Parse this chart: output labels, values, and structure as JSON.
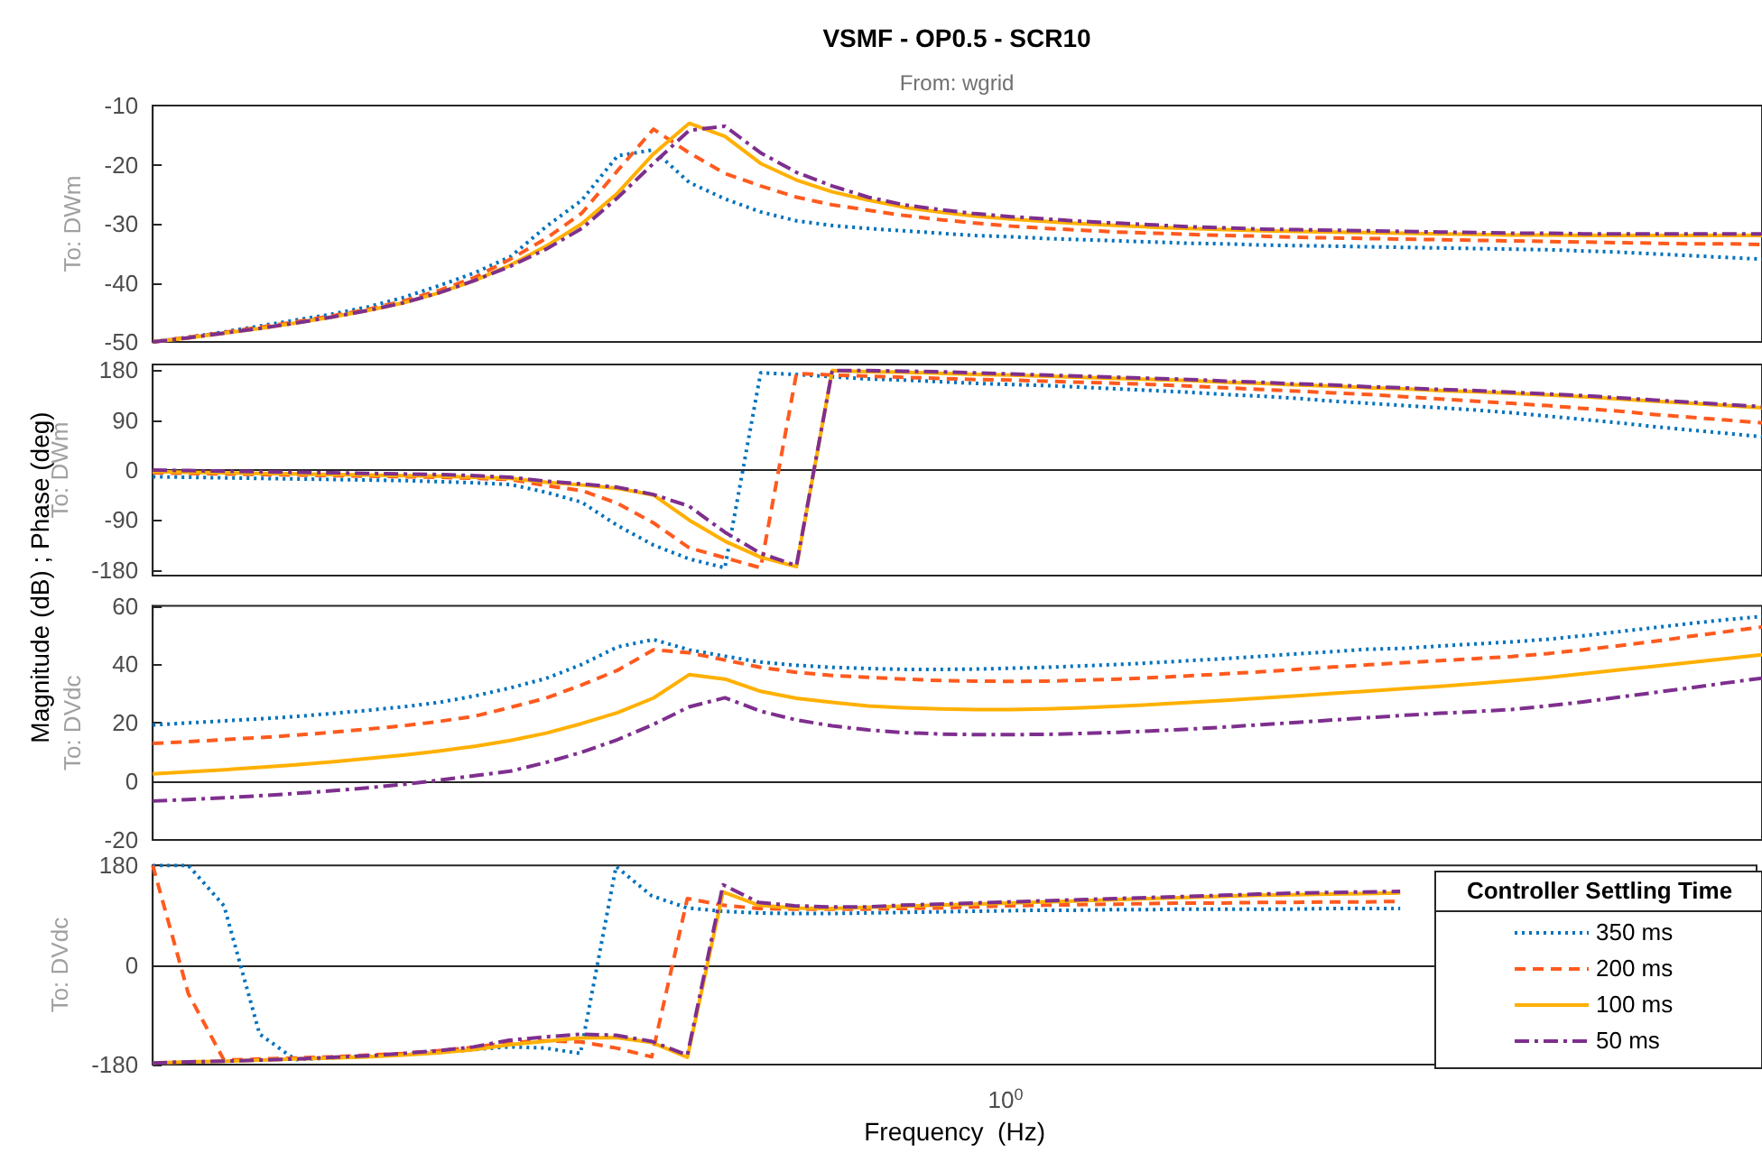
{
  "chart_data": [
    {
      "type": "line",
      "title": "VSMF - OP0.5 - SCR10",
      "subtitle": "From: wgrid",
      "ylabel": "To: DWm",
      "annotations": [
        "Magnitude (dB) ; Phase (deg)"
      ],
      "categories": [
        null,
        null,
        null,
        null,
        null,
        null,
        null,
        null,
        null,
        null,
        null,
        null,
        null,
        null,
        null,
        null,
        null,
        null,
        null,
        null,
        null,
        null,
        null,
        null,
        null,
        null,
        null,
        null,
        null,
        null,
        null,
        null,
        null,
        null,
        null,
        null,
        null,
        null,
        null,
        null,
        null,
        null,
        null,
        null,
        null,
        null
      ],
      "ylim": [
        -50,
        -10
      ],
      "yticks": [
        -50,
        -40,
        -30,
        -20,
        -10
      ],
      "tick_labels": "y",
      "series": [
        {
          "color": "#0072bd",
          "line_style": "dotted",
          "values": [
            -50,
            -49.2,
            -48.3,
            -47.3,
            -46.3,
            -45.3,
            -44.1,
            -42.5,
            -40.5,
            -38.3,
            -35.6,
            -30.5,
            -26,
            -18.5,
            -17.5,
            -23,
            -25.8,
            -28,
            -29.5,
            -30.3,
            -30.8,
            -31.2,
            -31.6,
            -32,
            -32.2,
            -32.5,
            -32.7,
            -32.9,
            -33.1,
            -33.3,
            -33.4,
            -33.6,
            -33.7,
            -33.8,
            -33.9,
            -34,
            -34.1,
            -34.2,
            -34.3,
            -34.4,
            -34.6,
            -34.8,
            -35.1,
            -35.4,
            -35.7,
            -36
          ]
        },
        {
          "color": "#ff5a1e",
          "line_style": "dashed",
          "values": [
            -50,
            -49.2,
            -48.4,
            -47.5,
            -46.6,
            -45.6,
            -44.5,
            -43.1,
            -41.3,
            -39.1,
            -36,
            -32.5,
            -28.2,
            -21,
            -14,
            -18,
            -21.5,
            -23.6,
            -25.5,
            -26.8,
            -27.7,
            -28.6,
            -29.3,
            -29.9,
            -30.4,
            -30.8,
            -31.1,
            -31.4,
            -31.6,
            -31.8,
            -32,
            -32.1,
            -32.3,
            -32.4,
            -32.5,
            -32.6,
            -32.7,
            -32.8,
            -32.9,
            -33,
            -33.1,
            -33.2,
            -33.3,
            -33.4,
            -33.4,
            -33.5
          ]
        },
        {
          "color": "#ffb000",
          "line_style": "solid",
          "values": [
            -50,
            -49.3,
            -48.5,
            -47.7,
            -46.8,
            -45.8,
            -44.7,
            -43.4,
            -41.7,
            -39.6,
            -37,
            -33.8,
            -30,
            -24.8,
            -18.2,
            -13,
            -15.2,
            -19.8,
            -22.6,
            -24.6,
            -26,
            -27.2,
            -28,
            -28.7,
            -29.2,
            -29.6,
            -30,
            -30.3,
            -30.6,
            -30.8,
            -31,
            -31.2,
            -31.3,
            -31.4,
            -31.5,
            -31.6,
            -31.7,
            -31.8,
            -31.9,
            -31.9,
            -32,
            -32,
            -32,
            -32,
            -32,
            -32
          ]
        },
        {
          "color": "#7e2f8e",
          "line_style": "dashdot",
          "values": [
            -50,
            -49.3,
            -48.5,
            -47.7,
            -46.8,
            -45.8,
            -44.7,
            -43.4,
            -41.7,
            -39.6,
            -37.2,
            -34.3,
            -30.8,
            -25.6,
            -19.8,
            -14.2,
            -13.5,
            -18,
            -21.3,
            -23.6,
            -25.5,
            -26.8,
            -27.6,
            -28.3,
            -28.8,
            -29.2,
            -29.6,
            -29.9,
            -30.2,
            -30.5,
            -30.7,
            -30.9,
            -31,
            -31.1,
            -31.2,
            -31.3,
            -31.4,
            -31.5,
            -31.6,
            -31.6,
            -31.7,
            -31.7,
            -31.7,
            -31.7,
            -31.7,
            -31.7
          ]
        }
      ]
    },
    {
      "type": "line",
      "ylabel": "To: DWm",
      "categories": [
        null,
        null,
        null,
        null,
        null,
        null,
        null,
        null,
        null,
        null,
        null,
        null,
        null,
        null,
        null,
        null,
        null,
        null,
        null,
        null,
        null,
        null,
        null,
        null,
        null,
        null,
        null,
        null,
        null,
        null,
        null,
        null,
        null,
        null,
        null,
        null,
        null,
        null,
        null,
        null,
        null,
        null,
        null,
        null,
        null,
        null
      ],
      "ylim": [
        -190,
        190
      ],
      "yticks": [
        -180,
        -90,
        0,
        90,
        180
      ],
      "tick_labels": "y",
      "series": [
        {
          "color": "#0072bd",
          "line_style": "dotted",
          "values": [
            -12,
            -13,
            -14,
            -15,
            -16,
            -17,
            -18,
            -19,
            -21,
            -23,
            -26,
            -40,
            -58,
            -100,
            -135,
            -160,
            -176,
            175,
            172,
            168,
            164,
            162,
            159,
            156,
            154,
            152,
            149,
            146,
            143,
            140,
            136,
            133,
            129,
            124,
            120,
            116,
            112,
            108,
            103,
            97,
            91,
            85,
            78,
            72,
            66,
            60
          ]
        },
        {
          "color": "#ff5a1e",
          "line_style": "dashed",
          "values": [
            -5,
            -6,
            -7,
            -8,
            -9,
            -10,
            -11,
            -12,
            -13,
            -15,
            -17,
            -28,
            -37,
            -60,
            -95,
            -140,
            -158,
            -176,
            174,
            171,
            169,
            167,
            165,
            163,
            162,
            160,
            158,
            156,
            154,
            151,
            148,
            145,
            142,
            139,
            136,
            132,
            128,
            124,
            120,
            116,
            111,
            106,
            100,
            95,
            90,
            85
          ]
        },
        {
          "color": "#ffb000",
          "line_style": "solid",
          "values": [
            -3,
            -4,
            -5,
            -6,
            -7,
            -8,
            -9,
            -10,
            -11,
            -13,
            -15,
            -22,
            -27,
            -33,
            -45,
            -90,
            -128,
            -157,
            -174,
            179,
            177,
            176,
            174,
            172,
            171,
            169,
            167,
            165,
            163,
            161,
            158,
            156,
            153,
            151,
            148,
            146,
            143,
            141,
            138,
            135,
            132,
            128,
            124,
            120,
            116,
            112
          ]
        },
        {
          "color": "#7e2f8e",
          "line_style": "dashdot",
          "values": [
            0,
            -1,
            -2,
            -3,
            -4,
            -5,
            -6,
            -7,
            -8,
            -10,
            -13,
            -20,
            -25,
            -31,
            -44,
            -65,
            -112,
            -150,
            -172,
            179,
            179,
            178,
            177,
            175,
            173,
            171,
            169,
            167,
            165,
            163,
            160,
            158,
            155,
            153,
            150,
            148,
            145,
            143,
            140,
            137,
            134,
            130,
            126,
            122,
            118,
            114
          ]
        }
      ]
    },
    {
      "type": "line",
      "ylabel": "To: DVdc",
      "categories": [
        null,
        null,
        null,
        null,
        null,
        null,
        null,
        null,
        null,
        null,
        null,
        null,
        null,
        null,
        null,
        null,
        null,
        null,
        null,
        null,
        null,
        null,
        null,
        null,
        null,
        null,
        null,
        null,
        null,
        null,
        null,
        null,
        null,
        null,
        null,
        null,
        null,
        null,
        null,
        null,
        null,
        null,
        null,
        null,
        null,
        null
      ],
      "ylim": [
        -20,
        60
      ],
      "yticks": [
        -20,
        0,
        20,
        40,
        60
      ],
      "tick_labels": "y",
      "series": [
        {
          "color": "#0072bd",
          "line_style": "dotted",
          "values": [
            19.3,
            20,
            20.7,
            21.4,
            22.2,
            23.2,
            24.3,
            25.5,
            27,
            29.2,
            32,
            35.2,
            40,
            46,
            48.5,
            45,
            42.8,
            40.8,
            39.7,
            39,
            38.6,
            38.3,
            38.3,
            38.4,
            38.7,
            39,
            39.5,
            40,
            40.6,
            41.3,
            42,
            42.8,
            43.6,
            44.4,
            45.2,
            45.5,
            46.3,
            47,
            47.7,
            48.6,
            49.8,
            51.2,
            52.6,
            54,
            55.3,
            56.4
          ]
        },
        {
          "color": "#ff5a1e",
          "line_style": "dashed",
          "values": [
            13,
            13.6,
            14.3,
            15,
            15.8,
            16.8,
            17.9,
            19,
            20.5,
            22.3,
            25.3,
            28.5,
            33,
            38,
            45,
            44,
            41.5,
            39,
            37.3,
            36.2,
            35.6,
            35,
            34.5,
            34.3,
            34.2,
            34.3,
            34.6,
            35,
            35.5,
            36.1,
            36.8,
            37.5,
            38.3,
            39.1,
            39.9,
            40.6,
            41.3,
            42,
            42.7,
            43.7,
            45,
            46.4,
            47.9,
            49.6,
            51.2,
            52.8
          ]
        },
        {
          "color": "#ffb000",
          "line_style": "solid",
          "values": [
            2.6,
            3.3,
            4,
            4.8,
            5.7,
            6.7,
            7.8,
            9,
            10.4,
            12,
            14,
            16.5,
            19.8,
            23.5,
            28.5,
            36.5,
            35,
            30.8,
            28.4,
            27,
            25.8,
            25.2,
            24.8,
            24.6,
            24.6,
            24.8,
            25.2,
            25.7,
            26.3,
            27,
            27.7,
            28.5,
            29.3,
            30.1,
            30.9,
            31.7,
            32.5,
            33.4,
            34.4,
            35.5,
            36.8,
            38.1,
            39.4,
            40.7,
            42,
            43.3
          ]
        },
        {
          "color": "#7e2f8e",
          "line_style": "dashdot",
          "values": [
            -6.7,
            -6.2,
            -5.6,
            -4.9,
            -4.1,
            -3.2,
            -2.2,
            -1,
            0.4,
            2,
            3.5,
            6.5,
            10,
            14.3,
            19.5,
            25.5,
            28.6,
            24,
            21,
            19,
            17.6,
            16.7,
            16.2,
            16,
            16,
            16.1,
            16.4,
            16.8,
            17.3,
            17.9,
            18.6,
            19.4,
            20.2,
            21,
            21.8,
            22.6,
            23.3,
            23.9,
            24.6,
            25.8,
            27.2,
            28.8,
            30.4,
            32,
            33.7,
            35.3
          ]
        }
      ]
    },
    {
      "type": "line",
      "ylabel": "To: DVdc",
      "xlabel": "Frequency  (Hz)",
      "annotations": [
        "10$^{0}$"
      ],
      "legend_title": "Controller Settling Time",
      "legend": "bottom right",
      "categories": [
        null,
        null,
        null,
        null,
        null,
        null,
        null,
        null,
        null,
        null,
        null,
        null,
        null,
        null,
        null,
        null,
        null,
        null,
        null,
        null,
        null,
        null,
        null,
        null,
        null,
        null,
        null,
        null,
        null,
        null,
        null,
        null,
        null,
        null,
        null,
        null,
        null,
        null,
        null,
        null,
        null,
        null,
        null,
        null,
        null,
        null
      ],
      "ylim": [
        -180,
        180
      ],
      "yticks": [
        -180,
        0,
        180
      ],
      "series": [
        {
          "name": "350 ms",
          "color": "#0072bd",
          "line_style": "dotted",
          "values": [
            180,
            180,
            107,
            -125,
            -171,
            -168,
            -165,
            -162,
            -158,
            -153,
            -148,
            -150,
            -160,
            178,
            125,
            103,
            97,
            94,
            93,
            93,
            94,
            95,
            96,
            97,
            98,
            99,
            99,
            100,
            100,
            101,
            101,
            101,
            101,
            102,
            102,
            102,
            null,
            null,
            null,
            null,
            null,
            null,
            null,
            null,
            null,
            null
          ]
        },
        {
          "name": "200 ms",
          "color": "#ff5a1e",
          "line_style": "dashed",
          "values": [
            180,
            -52,
            -172,
            -170,
            -168,
            -166,
            -163,
            -160,
            -155,
            -149,
            -140,
            -137,
            -139,
            -150,
            -166,
            120,
            108,
            102,
            101,
            101,
            101,
            102,
            103,
            105,
            107,
            108,
            109,
            110,
            111,
            112,
            112,
            113,
            113,
            114,
            114,
            115,
            null,
            null,
            null,
            null,
            null,
            null,
            null,
            null,
            null,
            null
          ]
        },
        {
          "name": "100 ms",
          "color": "#ffb000",
          "line_style": "solid",
          "values": [
            -177,
            -175,
            -174,
            -172,
            -170,
            -168,
            -166,
            -163,
            -159,
            -153,
            -144,
            -138,
            -132,
            -131,
            -140,
            -167,
            132,
            108,
            103,
            102,
            104,
            106,
            108,
            110,
            112,
            114,
            116,
            118,
            120,
            122,
            124,
            126,
            127,
            128,
            129,
            130,
            null,
            null,
            null,
            null,
            null,
            null,
            null,
            null,
            null,
            null
          ]
        },
        {
          "name": "50 ms",
          "color": "#7e2f8e",
          "line_style": "dashdot",
          "values": [
            -177,
            -175,
            -174,
            -172,
            -170,
            -167,
            -164,
            -160,
            -155,
            -148,
            -136,
            -130,
            -125,
            -127,
            -138,
            -163,
            145,
            113,
            107,
            105,
            105,
            108,
            110,
            112,
            114,
            116,
            118,
            120,
            122,
            124,
            126,
            128,
            130,
            131,
            132,
            133,
            null,
            null,
            null,
            null,
            null,
            null,
            null,
            null,
            null,
            null
          ]
        }
      ]
    }
  ]
}
